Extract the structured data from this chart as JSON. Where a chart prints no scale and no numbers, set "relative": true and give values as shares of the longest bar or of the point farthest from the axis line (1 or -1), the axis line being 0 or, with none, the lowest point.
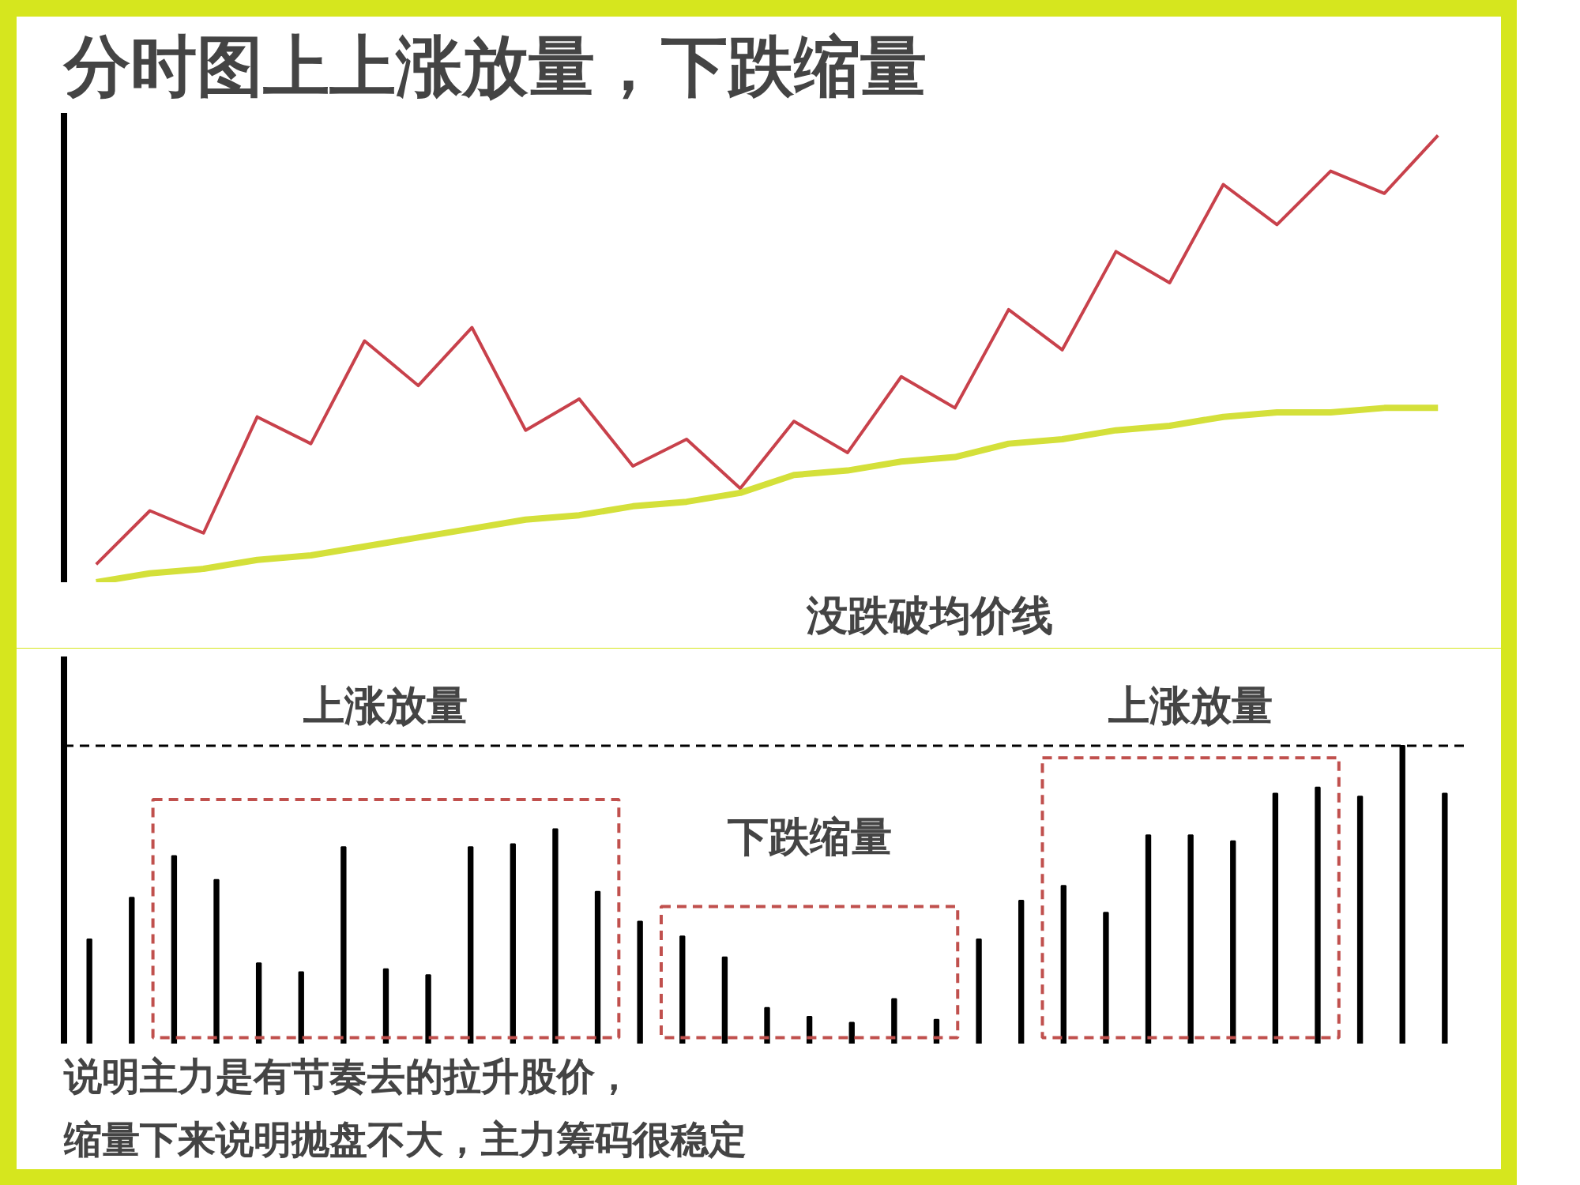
{
  "chart_data": [
    {
      "type": "line",
      "title": "分时图上上涨放量，下跌缩量",
      "relative": true,
      "line_style": "solid",
      "categories": [
        null,
        null,
        null,
        null,
        null,
        null,
        null,
        null,
        null,
        null,
        null,
        null,
        null,
        null,
        null,
        null,
        null,
        null,
        null,
        null,
        null,
        null,
        null,
        null,
        null,
        null
      ],
      "series": [
        {
          "color": "#c8414b",
          "values": [
            0.04,
            0.16,
            0.11,
            0.37,
            0.31,
            0.54,
            0.44,
            0.57,
            0.34,
            0.41,
            0.26,
            0.32,
            0.21,
            0.36,
            0.29,
            0.46,
            0.39,
            0.61,
            0.52,
            0.74,
            0.67,
            0.89,
            0.8,
            0.92,
            0.87,
            1
          ]
        },
        {
          "color": "#d4e03a",
          "values": [
            0.0,
            0.02,
            0.03,
            0.05,
            0.06,
            0.08,
            0.1,
            0.12,
            0.14,
            0.15,
            0.17,
            0.18,
            0.2,
            0.24,
            0.25,
            0.27,
            0.28,
            0.31,
            0.32,
            0.34,
            0.35,
            0.37,
            0.38,
            0.38,
            0.39,
            0.39
          ]
        }
      ],
      "annotations": [
        "没跌破均价线"
      ]
    },
    {
      "type": "bar",
      "relative": true,
      "categories": [
        null,
        null,
        null,
        null,
        null,
        null,
        null,
        null,
        null,
        null,
        null,
        null,
        null,
        null,
        null,
        null,
        null,
        null,
        null,
        null,
        null,
        null,
        null,
        null,
        null,
        null,
        null,
        null,
        null,
        null,
        null,
        null,
        null
      ],
      "values": [
        0.35,
        0.49,
        0.63,
        0.55,
        0.27,
        0.24,
        0.66,
        0.25,
        0.23,
        0.66,
        0.67,
        0.72,
        0.51,
        0.41,
        0.36,
        0.29,
        0.12,
        0.09,
        0.07,
        0.15,
        0.08,
        0.35,
        0.48,
        0.53,
        0.44,
        0.7,
        0.7,
        0.68,
        0.84,
        0.86,
        0.83,
        1,
        0.84
      ],
      "color": "#000000",
      "ref_lines": [
        {
          "axis": "y",
          "value": 1,
          "color": "#000000",
          "line_style": "dashed"
        }
      ],
      "annotations": [
        "上涨放量",
        "下跌缩量",
        "上涨放量",
        "说明主力是有节奏去的拉升股价，",
        "缩量下来说明抛盘不大，主力筹码很稳定"
      ]
    }
  ]
}
